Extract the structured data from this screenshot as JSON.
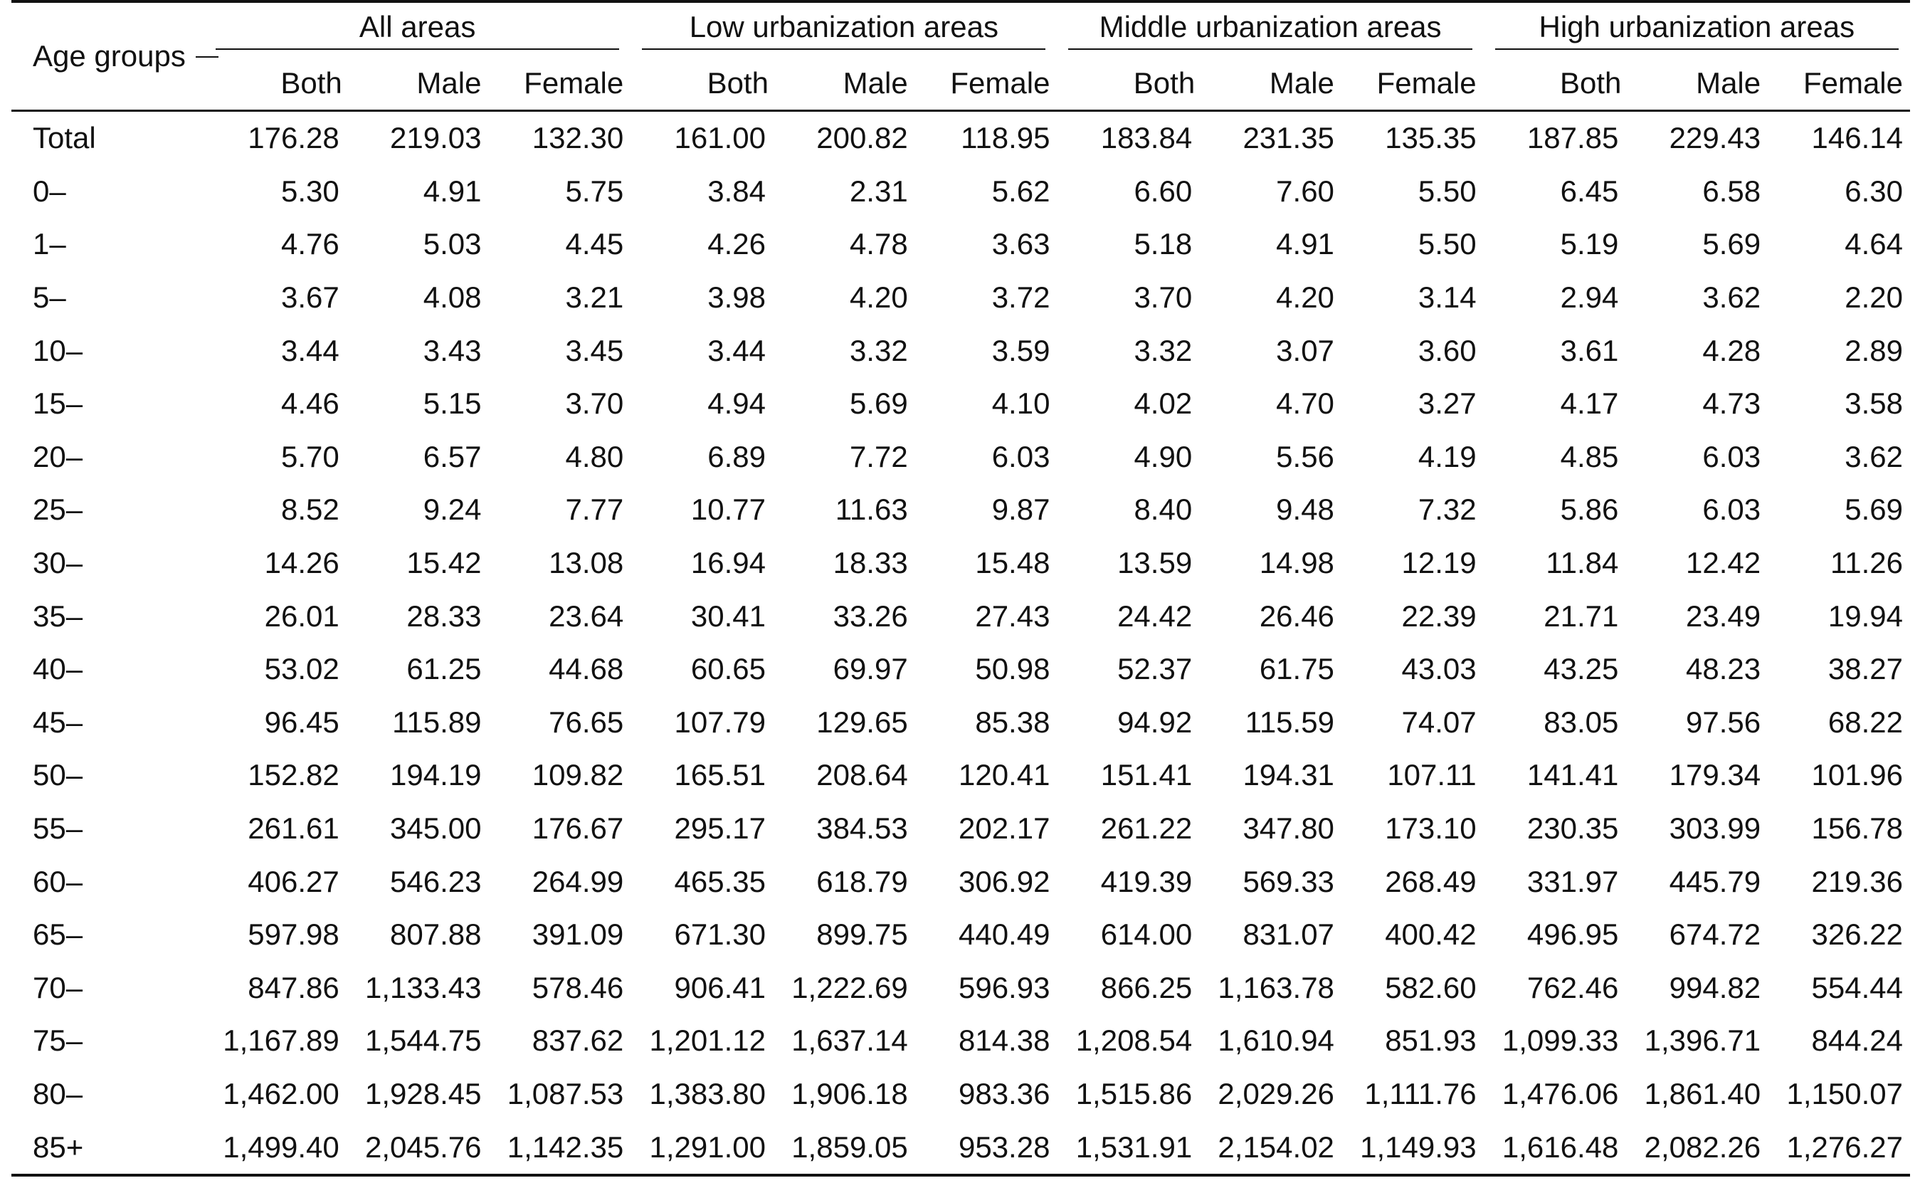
{
  "table": {
    "age_header": "Age groups",
    "groups": [
      "All areas",
      "Low urbanization areas",
      "Middle urbanization areas",
      "High urbanization areas"
    ],
    "subheaders": [
      "Both",
      "Male",
      "Female"
    ],
    "rows": [
      {
        "age": "Total",
        "values": [
          "176.28",
          "219.03",
          "132.30",
          "161.00",
          "200.82",
          "118.95",
          "183.84",
          "231.35",
          "135.35",
          "187.85",
          "229.43",
          "146.14"
        ]
      },
      {
        "age": "0–",
        "values": [
          "5.30",
          "4.91",
          "5.75",
          "3.84",
          "2.31",
          "5.62",
          "6.60",
          "7.60",
          "5.50",
          "6.45",
          "6.58",
          "6.30"
        ]
      },
      {
        "age": "1–",
        "values": [
          "4.76",
          "5.03",
          "4.45",
          "4.26",
          "4.78",
          "3.63",
          "5.18",
          "4.91",
          "5.50",
          "5.19",
          "5.69",
          "4.64"
        ]
      },
      {
        "age": "5–",
        "values": [
          "3.67",
          "4.08",
          "3.21",
          "3.98",
          "4.20",
          "3.72",
          "3.70",
          "4.20",
          "3.14",
          "2.94",
          "3.62",
          "2.20"
        ]
      },
      {
        "age": "10–",
        "values": [
          "3.44",
          "3.43",
          "3.45",
          "3.44",
          "3.32",
          "3.59",
          "3.32",
          "3.07",
          "3.60",
          "3.61",
          "4.28",
          "2.89"
        ]
      },
      {
        "age": "15–",
        "values": [
          "4.46",
          "5.15",
          "3.70",
          "4.94",
          "5.69",
          "4.10",
          "4.02",
          "4.70",
          "3.27",
          "4.17",
          "4.73",
          "3.58"
        ]
      },
      {
        "age": "20–",
        "values": [
          "5.70",
          "6.57",
          "4.80",
          "6.89",
          "7.72",
          "6.03",
          "4.90",
          "5.56",
          "4.19",
          "4.85",
          "6.03",
          "3.62"
        ]
      },
      {
        "age": "25–",
        "values": [
          "8.52",
          "9.24",
          "7.77",
          "10.77",
          "11.63",
          "9.87",
          "8.40",
          "9.48",
          "7.32",
          "5.86",
          "6.03",
          "5.69"
        ]
      },
      {
        "age": "30–",
        "values": [
          "14.26",
          "15.42",
          "13.08",
          "16.94",
          "18.33",
          "15.48",
          "13.59",
          "14.98",
          "12.19",
          "11.84",
          "12.42",
          "11.26"
        ]
      },
      {
        "age": "35–",
        "values": [
          "26.01",
          "28.33",
          "23.64",
          "30.41",
          "33.26",
          "27.43",
          "24.42",
          "26.46",
          "22.39",
          "21.71",
          "23.49",
          "19.94"
        ]
      },
      {
        "age": "40–",
        "values": [
          "53.02",
          "61.25",
          "44.68",
          "60.65",
          "69.97",
          "50.98",
          "52.37",
          "61.75",
          "43.03",
          "43.25",
          "48.23",
          "38.27"
        ]
      },
      {
        "age": "45–",
        "values": [
          "96.45",
          "115.89",
          "76.65",
          "107.79",
          "129.65",
          "85.38",
          "94.92",
          "115.59",
          "74.07",
          "83.05",
          "97.56",
          "68.22"
        ]
      },
      {
        "age": "50–",
        "values": [
          "152.82",
          "194.19",
          "109.82",
          "165.51",
          "208.64",
          "120.41",
          "151.41",
          "194.31",
          "107.11",
          "141.41",
          "179.34",
          "101.96"
        ]
      },
      {
        "age": "55–",
        "values": [
          "261.61",
          "345.00",
          "176.67",
          "295.17",
          "384.53",
          "202.17",
          "261.22",
          "347.80",
          "173.10",
          "230.35",
          "303.99",
          "156.78"
        ]
      },
      {
        "age": "60–",
        "values": [
          "406.27",
          "546.23",
          "264.99",
          "465.35",
          "618.79",
          "306.92",
          "419.39",
          "569.33",
          "268.49",
          "331.97",
          "445.79",
          "219.36"
        ]
      },
      {
        "age": "65–",
        "values": [
          "597.98",
          "807.88",
          "391.09",
          "671.30",
          "899.75",
          "440.49",
          "614.00",
          "831.07",
          "400.42",
          "496.95",
          "674.72",
          "326.22"
        ]
      },
      {
        "age": "70–",
        "values": [
          "847.86",
          "1,133.43",
          "578.46",
          "906.41",
          "1,222.69",
          "596.93",
          "866.25",
          "1,163.78",
          "582.60",
          "762.46",
          "994.82",
          "554.44"
        ]
      },
      {
        "age": "75–",
        "values": [
          "1,167.89",
          "1,544.75",
          "837.62",
          "1,201.12",
          "1,637.14",
          "814.38",
          "1,208.54",
          "1,610.94",
          "851.93",
          "1,099.33",
          "1,396.71",
          "844.24"
        ]
      },
      {
        "age": "80–",
        "values": [
          "1,462.00",
          "1,928.45",
          "1,087.53",
          "1,383.80",
          "1,906.18",
          "983.36",
          "1,515.86",
          "2,029.26",
          "1,111.76",
          "1,476.06",
          "1,861.40",
          "1,150.07"
        ]
      },
      {
        "age": "85+",
        "values": [
          "1,499.40",
          "2,045.76",
          "1,142.35",
          "1,291.00",
          "1,859.05",
          "953.28",
          "1,531.91",
          "2,154.02",
          "1,149.93",
          "1,616.48",
          "2,082.26",
          "1,276.27"
        ]
      }
    ]
  }
}
